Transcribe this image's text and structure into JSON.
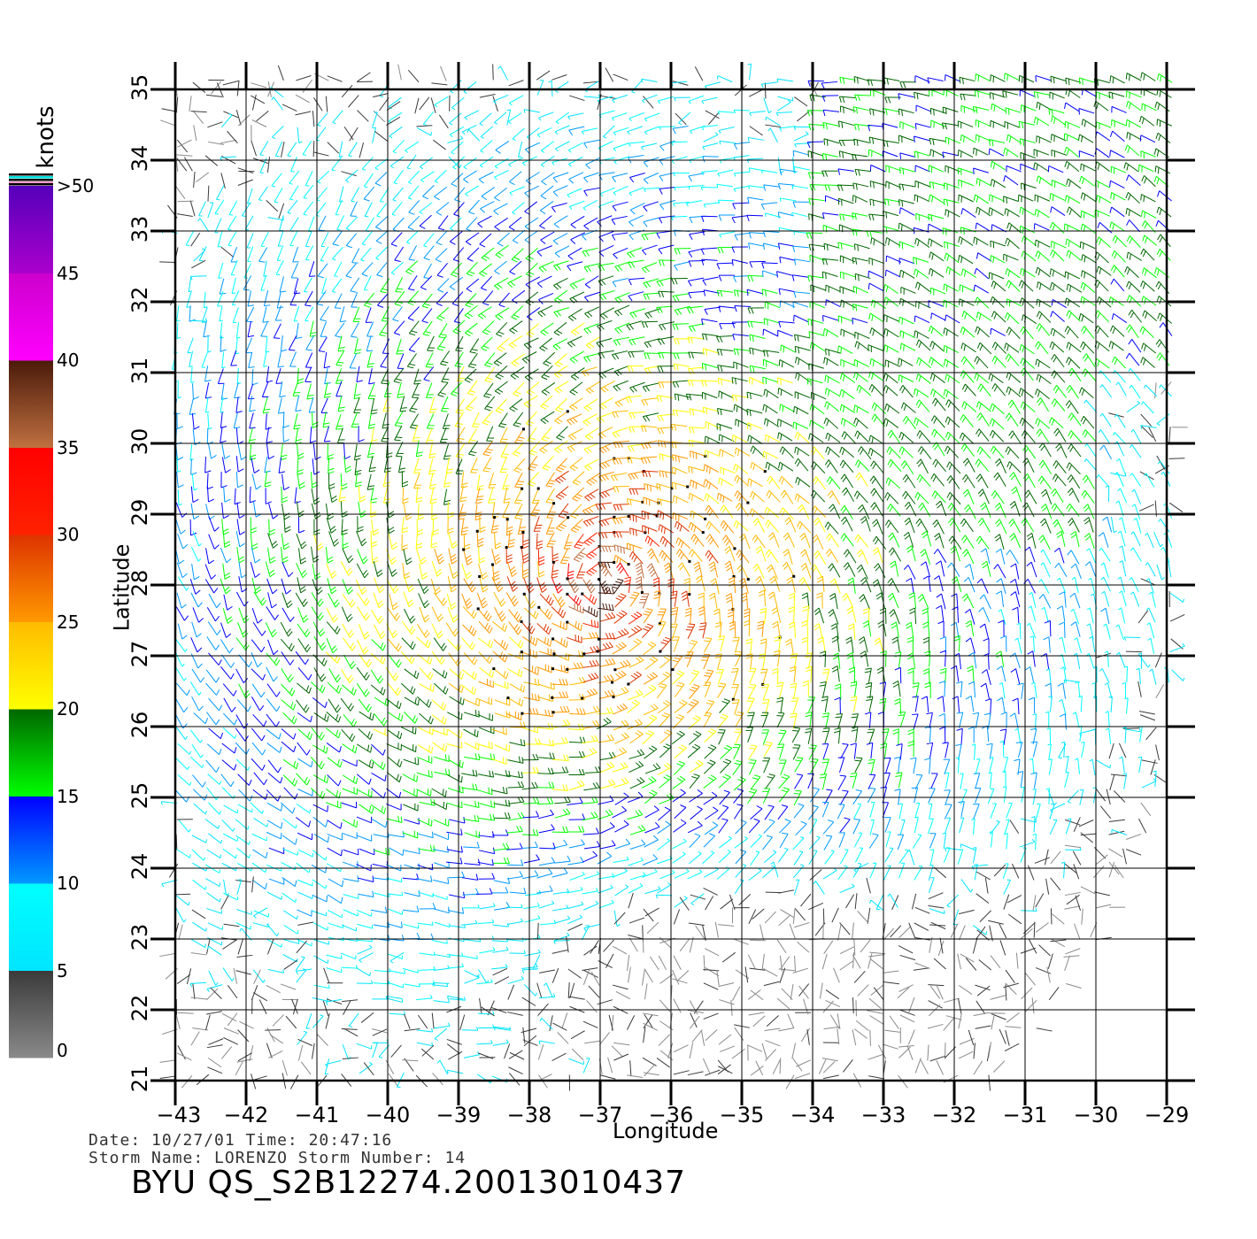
{
  "chart_data": {
    "type": "wind-barb-map",
    "xlabel": "Longitude",
    "ylabel": "Latitude",
    "x_ticks": [
      -43,
      -42,
      -41,
      -40,
      -39,
      -38,
      -37,
      -36,
      -35,
      -34,
      -33,
      -32,
      -31,
      -30,
      -29
    ],
    "y_ticks": [
      21,
      22,
      23,
      24,
      25,
      26,
      27,
      28,
      29,
      30,
      31,
      32,
      33,
      34,
      35
    ],
    "xlim": [
      -43,
      -29
    ],
    "ylim": [
      21,
      35
    ],
    "grid": true,
    "storm_center": {
      "lon": -36.9,
      "lat": 28.1
    },
    "legend": {
      "title": "knots",
      "labels": [
        "0",
        "5",
        "10",
        "15",
        "20",
        "25",
        "30",
        "35",
        "40",
        "45",
        ">50"
      ],
      "bands": [
        {
          "from": 0,
          "to": 5,
          "top": "#3a3a3a",
          "bottom": "#8a8a8a"
        },
        {
          "from": 5,
          "to": 10,
          "top": "#00ffff",
          "bottom": "#00e5ff"
        },
        {
          "from": 10,
          "to": 15,
          "top": "#0000ff",
          "bottom": "#0099ff"
        },
        {
          "from": 15,
          "to": 20,
          "top": "#006600",
          "bottom": "#00ff00"
        },
        {
          "from": 20,
          "to": 25,
          "top": "#ffbb00",
          "bottom": "#ffff00"
        },
        {
          "from": 25,
          "to": 30,
          "top": "#dd3300",
          "bottom": "#ff9900"
        },
        {
          "from": 30,
          "to": 35,
          "top": "#ff0000",
          "bottom": "#ff2200"
        },
        {
          "from": 35,
          "to": 40,
          "top": "#4a1a0a",
          "bottom": "#c07040"
        },
        {
          "from": 40,
          "to": 45,
          "top": "#cc00cc",
          "bottom": "#ff00ff"
        },
        {
          "from": 45,
          "to": 50,
          "top": "#5500bb",
          "bottom": "#aa00cc"
        }
      ]
    }
  },
  "footer": {
    "line1": "Date: 10/27/01   Time: 20:47:16",
    "line2": "Storm Name: LORENZO   Storm Number: 14",
    "title": "BYU QS_S2B12274.20013010437"
  }
}
